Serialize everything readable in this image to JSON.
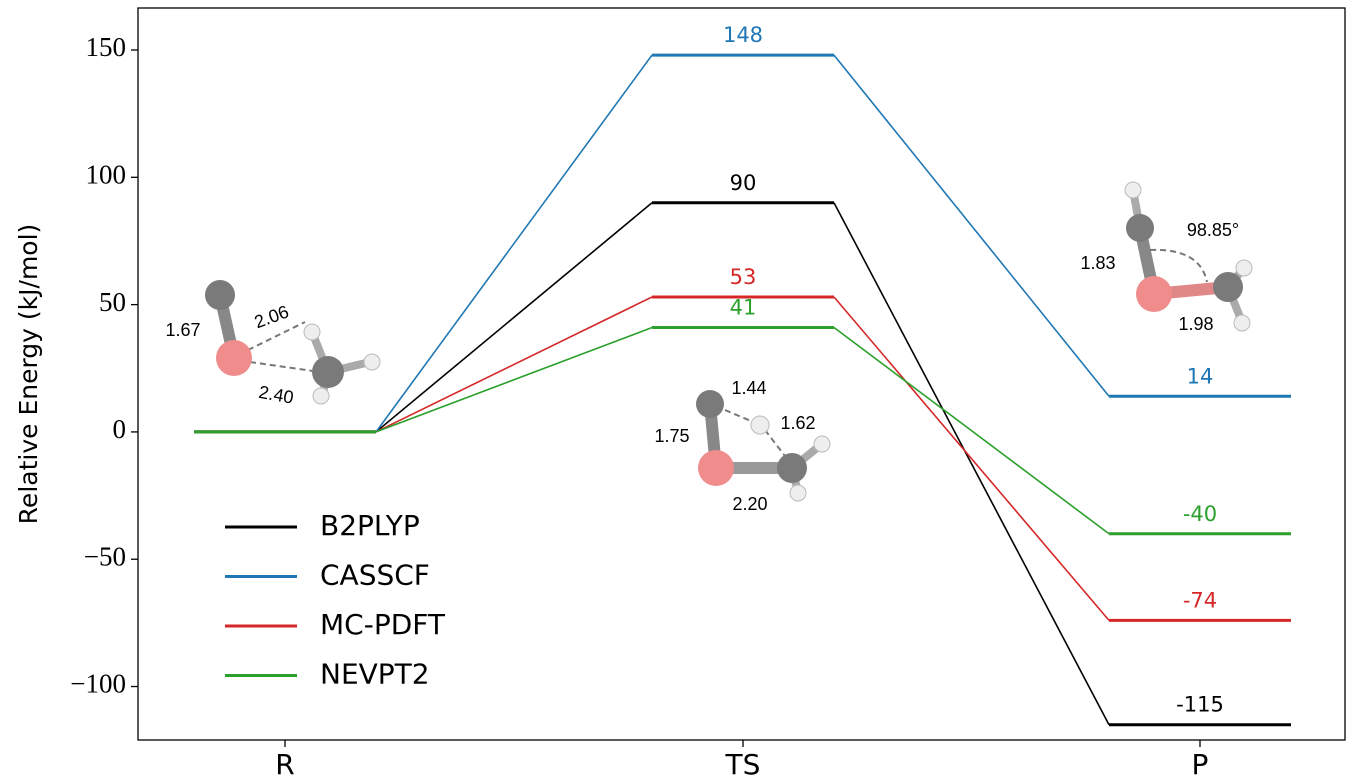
{
  "chart_data": {
    "type": "energy-diagram",
    "y_label": "Relative Energy (kJ/mol)",
    "categories": [
      "R",
      "TS",
      "P"
    ],
    "series": [
      {
        "name": "B2PLYP",
        "color": "#000000",
        "values": [
          0,
          90,
          -115
        ]
      },
      {
        "name": "CASSCF",
        "color": "#1f77b4",
        "values": [
          0,
          148,
          14
        ]
      },
      {
        "name": "MC-PDFT",
        "color": "#d62728",
        "values": [
          0,
          53,
          -74
        ]
      },
      {
        "name": "NEVPT2",
        "color": "#2ca02c",
        "values": [
          0,
          41,
          -40
        ]
      }
    ],
    "ylim": [
      -121,
      166.5
    ],
    "yticks": [
      {
        "value": -100,
        "label": "−100"
      },
      {
        "value": -50,
        "label": "−50"
      },
      0,
      50,
      100,
      150
    ],
    "annotations": [
      "1.67",
      "2.06",
      "2.40",
      "1.44",
      "1.62",
      "1.75",
      "2.20",
      "98.85°",
      "1.83",
      "1.98"
    ],
    "legend": "lower left"
  }
}
